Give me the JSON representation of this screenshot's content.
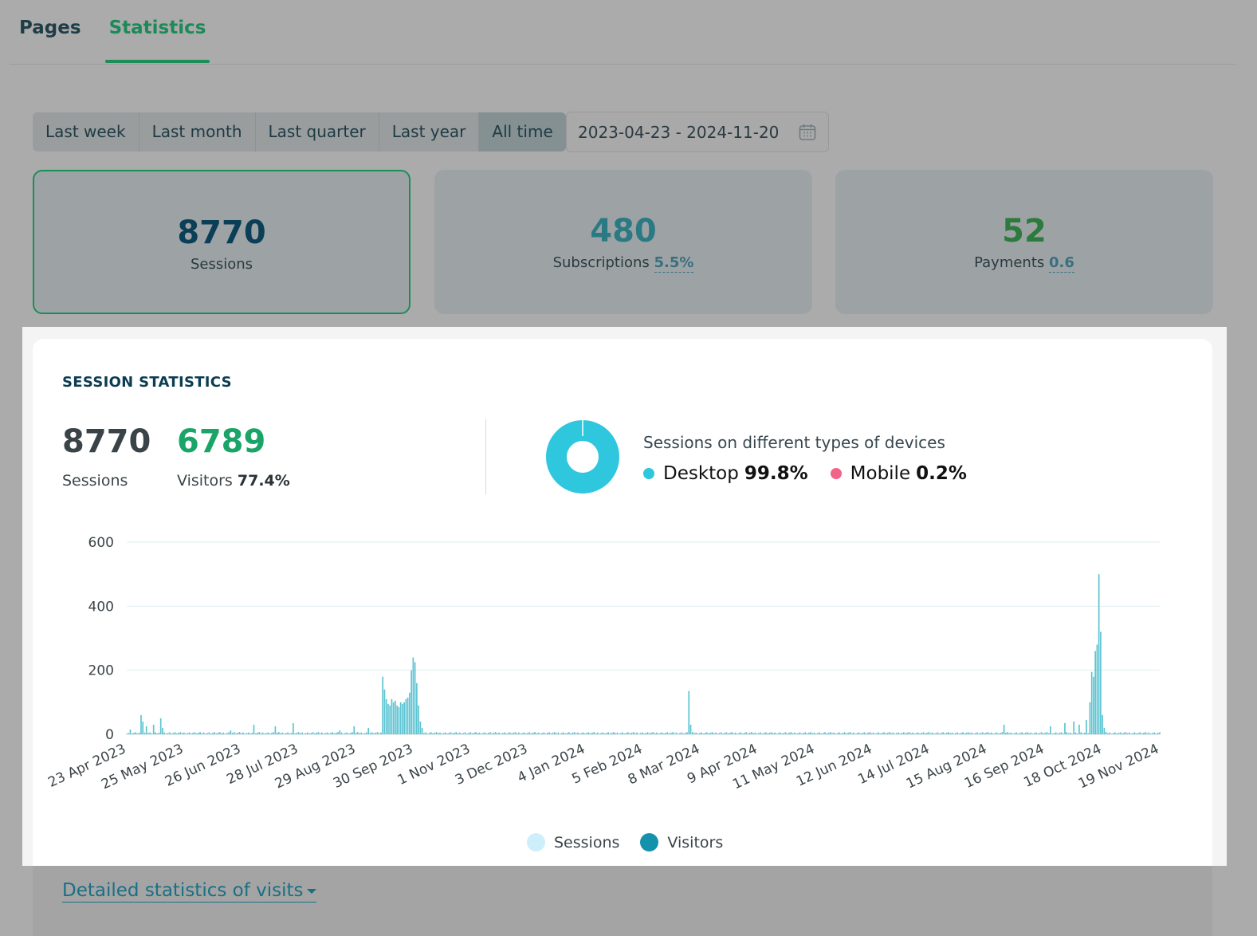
{
  "tabs": [
    {
      "label": "Pages",
      "active": false
    },
    {
      "label": "Statistics",
      "active": true
    }
  ],
  "periods": [
    {
      "label": "Last week",
      "active": false
    },
    {
      "label": "Last month",
      "active": false
    },
    {
      "label": "Last quarter",
      "active": false
    },
    {
      "label": "Last year",
      "active": false
    },
    {
      "label": "All time",
      "active": true
    }
  ],
  "date_range": {
    "value": "2023-04-23 - 2024-11-20",
    "icon": "calendar-icon"
  },
  "kpis": {
    "sessions": {
      "value": "8770",
      "label": "Sessions"
    },
    "subscriptions": {
      "value": "480",
      "label": "Subscriptions",
      "rate": "5.5%"
    },
    "payments": {
      "value": "52",
      "label": "Payments",
      "rate": "0.6"
    }
  },
  "session_stats": {
    "title": "SESSION STATISTICS",
    "sessions_value": "8770",
    "sessions_label": "Sessions",
    "visitors_value": "6789",
    "visitors_label": "Visitors",
    "visitors_pct": "77.4%",
    "devices_title": "Sessions on different types of devices",
    "devices": [
      {
        "name": "Desktop",
        "pct": "99.8%",
        "share": 0.998,
        "color": "#2ec7de"
      },
      {
        "name": "Mobile",
        "pct": "0.2%",
        "share": 0.002,
        "color": "#f2638a"
      }
    ]
  },
  "legend": [
    {
      "label": "Sessions",
      "color": "#cdeffa"
    },
    {
      "label": "Visitors",
      "color": "#1592ab"
    }
  ],
  "colors": {
    "accent_green": "#1d8d58",
    "bar": "#5dc4d2",
    "grid": "#dfeef0"
  },
  "detail_link": "Detailed statistics of visits",
  "chart_data": {
    "type": "bar",
    "ylim": [
      0,
      600
    ],
    "yticks": [
      "0",
      "200",
      "400",
      "600"
    ],
    "x_tick_labels": [
      "23 Apr 2023",
      "25 May 2023",
      "26 Jun 2023",
      "28 Jul 2023",
      "29 Aug 2023",
      "30 Sep 2023",
      "1 Nov 2023",
      "3 Dec 2023",
      "4 Jan 2024",
      "5 Feb 2024",
      "8 Mar 2024",
      "9 Apr 2024",
      "11 May 2024",
      "12 Jun 2024",
      "14 Jul 2024",
      "15 Aug 2024",
      "16 Sep 2024",
      "18 Oct 2024",
      "19 Nov 2024"
    ],
    "x_start": "2023-04-23",
    "x_end": "2024-11-20",
    "series": [
      {
        "name": "Sessions",
        "baseline": 5,
        "peaks": [
          [
            "2023-04-25",
            15
          ],
          [
            "2023-05-01",
            60
          ],
          [
            "2023-05-02",
            40
          ],
          [
            "2023-05-04",
            25
          ],
          [
            "2023-05-08",
            30
          ],
          [
            "2023-05-12",
            50
          ],
          [
            "2023-05-13",
            20
          ],
          [
            "2023-06-20",
            12
          ],
          [
            "2023-07-03",
            30
          ],
          [
            "2023-07-15",
            25
          ],
          [
            "2023-07-25",
            35
          ],
          [
            "2023-08-20",
            12
          ],
          [
            "2023-08-28",
            25
          ],
          [
            "2023-09-05",
            20
          ],
          [
            "2023-09-13",
            180
          ],
          [
            "2023-09-14",
            140
          ],
          [
            "2023-09-15",
            110
          ],
          [
            "2023-09-16",
            95
          ],
          [
            "2023-09-17",
            90
          ],
          [
            "2023-09-18",
            110
          ],
          [
            "2023-09-19",
            100
          ],
          [
            "2023-09-20",
            105
          ],
          [
            "2023-09-21",
            90
          ],
          [
            "2023-09-22",
            85
          ],
          [
            "2023-09-23",
            100
          ],
          [
            "2023-09-24",
            95
          ],
          [
            "2023-09-25",
            100
          ],
          [
            "2023-09-26",
            110
          ],
          [
            "2023-09-27",
            115
          ],
          [
            "2023-09-28",
            130
          ],
          [
            "2023-09-29",
            200
          ],
          [
            "2023-09-30",
            240
          ],
          [
            "2023-10-01",
            225
          ],
          [
            "2023-10-02",
            160
          ],
          [
            "2023-10-03",
            90
          ],
          [
            "2023-10-04",
            40
          ],
          [
            "2023-10-05",
            20
          ],
          [
            "2024-03-02",
            135
          ],
          [
            "2024-03-03",
            30
          ],
          [
            "2024-08-25",
            30
          ],
          [
            "2024-09-20",
            25
          ],
          [
            "2024-09-28",
            35
          ],
          [
            "2024-10-03",
            40
          ],
          [
            "2024-10-06",
            30
          ],
          [
            "2024-10-10",
            45
          ],
          [
            "2024-10-12",
            100
          ],
          [
            "2024-10-13",
            195
          ],
          [
            "2024-10-14",
            180
          ],
          [
            "2024-10-15",
            260
          ],
          [
            "2024-10-16",
            280
          ],
          [
            "2024-10-17",
            500
          ],
          [
            "2024-10-18",
            320
          ],
          [
            "2024-10-19",
            60
          ],
          [
            "2024-10-20",
            20
          ]
        ]
      }
    ]
  }
}
